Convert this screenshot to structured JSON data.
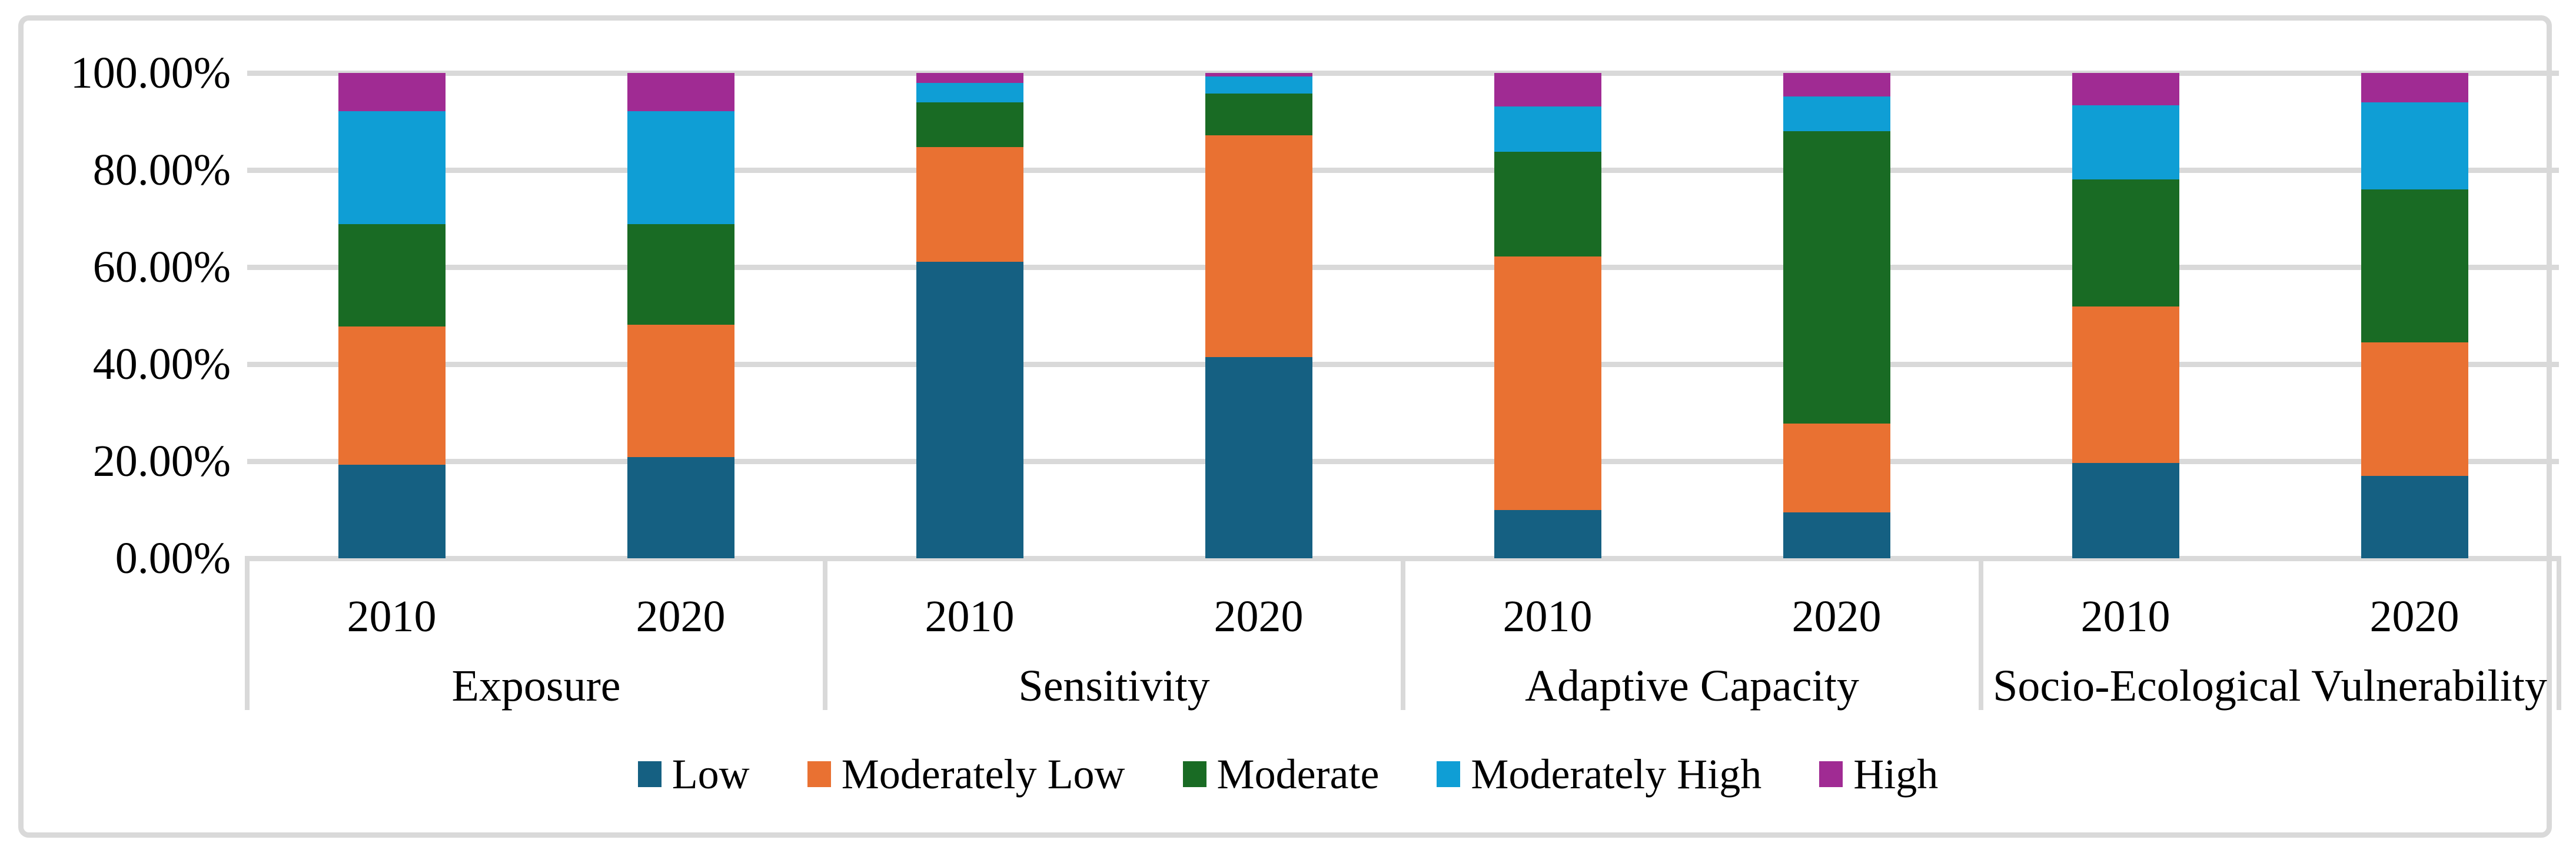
{
  "figure": {
    "background": "#FFFFFF",
    "border_color": "#D9D9D9",
    "gridline_color": "#D9D9D9",
    "text_color": "#000000"
  },
  "chart": {
    "y_axis": {
      "tick_labels": [
        "100.00%",
        "80.00%",
        "60.00%",
        "40.00%",
        "20.00%",
        "0.00%"
      ]
    }
  },
  "chart_data": {
    "type": "bar",
    "stacked": true,
    "units": "percent",
    "title": "",
    "xlabel": "",
    "ylabel": "",
    "ylim": [
      0,
      100
    ],
    "grid": true,
    "legend_position": "bottom",
    "groups": [
      "Exposure",
      "Sensitivity",
      "Adaptive Capacity",
      "Socio-Ecological Vulnerability"
    ],
    "x_labels": [
      "2010",
      "2020",
      "2010",
      "2020",
      "2010",
      "2020",
      "2010",
      "2020"
    ],
    "series": [
      {
        "name": "Low",
        "color": "#156082",
        "values": [
          19.3,
          20.8,
          61.1,
          41.4,
          9.9,
          9.5,
          19.6,
          17.0
        ]
      },
      {
        "name": "Moderately Low",
        "color": "#E97132",
        "values": [
          28.4,
          27.3,
          23.6,
          45.7,
          52.3,
          18.3,
          32.3,
          27.5
        ]
      },
      {
        "name": "Moderate",
        "color": "#196B24",
        "values": [
          21.1,
          20.7,
          9.3,
          8.7,
          21.5,
          60.2,
          26.2,
          31.5
        ]
      },
      {
        "name": "Moderately High",
        "color": "#0F9ED5",
        "values": [
          23.3,
          23.3,
          4.0,
          3.5,
          9.4,
          7.2,
          15.2,
          17.9
        ]
      },
      {
        "name": "High",
        "color": "#A02B93",
        "values": [
          7.9,
          7.9,
          2.0,
          0.7,
          6.9,
          4.8,
          6.7,
          6.1
        ]
      }
    ]
  }
}
